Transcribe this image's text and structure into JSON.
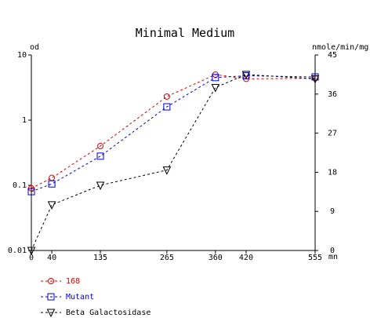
{
  "chart_data": {
    "type": "line",
    "title": "Minimal Medium",
    "x_unit": "mn",
    "x": [
      0,
      40,
      135,
      265,
      360,
      420,
      555
    ],
    "x_ticks": [
      "0",
      "40",
      "135",
      "265",
      "360",
      "420",
      "555"
    ],
    "left_axis": {
      "label": "od",
      "scale": "log",
      "range": [
        0.01,
        10
      ],
      "ticks": [
        "10",
        "1",
        "0.1",
        "0.01"
      ]
    },
    "right_axis": {
      "label": "nmole/min/mg",
      "scale": "linear",
      "range": [
        0,
        45
      ],
      "ticks": [
        "45",
        "36",
        "27",
        "18",
        "9",
        "0"
      ]
    },
    "series": [
      {
        "name": "168",
        "axis": "left",
        "marker": "circle",
        "color": "#e00000",
        "values": [
          0.09,
          0.13,
          0.4,
          2.3,
          5.0,
          4.3,
          4.4
        ]
      },
      {
        "name": "Mutant",
        "axis": "left",
        "marker": "square",
        "color": "#0000cc",
        "values": [
          0.08,
          0.105,
          0.28,
          1.6,
          4.5,
          4.8,
          4.6
        ]
      },
      {
        "name": "Beta Galactosidase",
        "axis": "right",
        "marker": "triangle-down",
        "color": "#000000",
        "values": [
          0,
          10.5,
          15,
          18.5,
          37.5,
          40.5,
          39.5
        ]
      }
    ],
    "legend_position": "bottom-left",
    "grid": false
  }
}
